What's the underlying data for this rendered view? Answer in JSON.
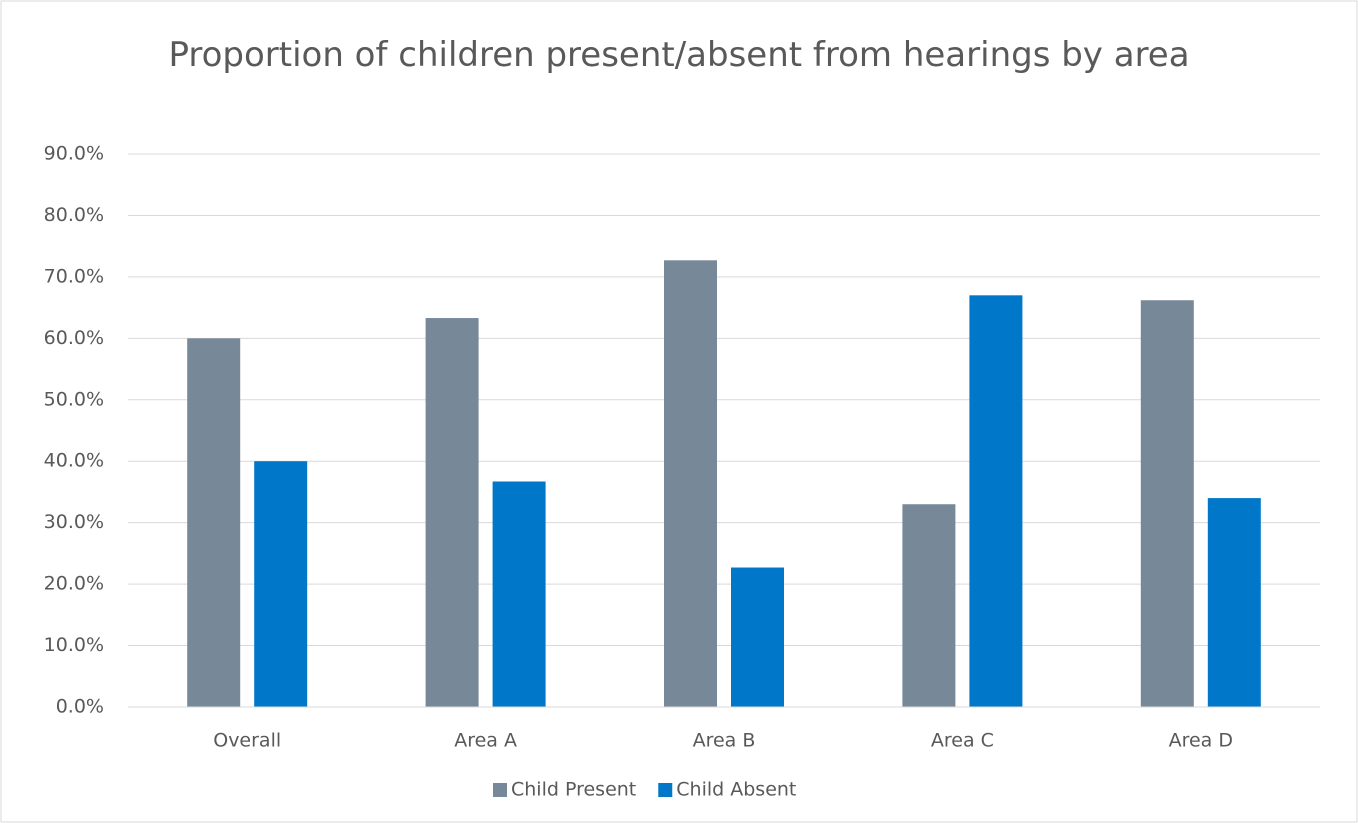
{
  "chart_data": {
    "type": "bar",
    "title": "Proportion of children present/absent from hearings by area",
    "categories": [
      "Overall",
      "Area A",
      "Area B",
      "Area C",
      "Area D"
    ],
    "series": [
      {
        "name": "Child Present",
        "color": "#778899",
        "values": [
          60.0,
          63.3,
          72.7,
          33.0,
          66.2
        ]
      },
      {
        "name": "Child Absent",
        "color": "#0077c8",
        "values": [
          40.0,
          36.7,
          22.7,
          67.0,
          34.0
        ]
      }
    ],
    "ylim": [
      0,
      90
    ],
    "yticks": [
      {
        "value": 0,
        "label": "0.0%"
      },
      {
        "value": 10,
        "label": "10.0%"
      },
      {
        "value": 20,
        "label": "20.0%"
      },
      {
        "value": 30,
        "label": "30.0%"
      },
      {
        "value": 40,
        "label": "40.0%"
      },
      {
        "value": 50,
        "label": "50.0%"
      },
      {
        "value": 60,
        "label": "60.0%"
      },
      {
        "value": 70,
        "label": "70.0%"
      },
      {
        "value": 80,
        "label": "80.0%"
      },
      {
        "value": 90,
        "label": "90.0%"
      }
    ],
    "grid": true,
    "legend": "bottom"
  }
}
